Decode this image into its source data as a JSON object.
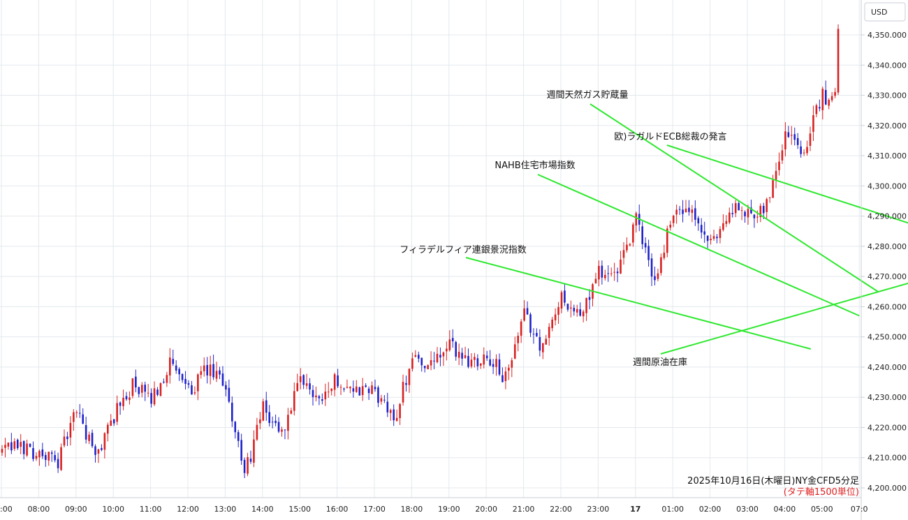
{
  "currency_label": "USD",
  "caption": {
    "line1": "2025年10月16日(木曜日)NY金CFD5分足",
    "line2": "(タテ軸1500単位)"
  },
  "colors": {
    "up": "#d82020",
    "down": "#1e22c8",
    "annotation": "#2ee82e",
    "grid": "#e3e8ee"
  },
  "chart_data": {
    "type": "candlestick",
    "ylim": [
      4197,
      4358
    ],
    "y_ticks": [
      {
        "value": 4200,
        "label": "4,200.000"
      },
      {
        "value": 4210,
        "label": "4,210.000"
      },
      {
        "value": 4220,
        "label": "4,220.000"
      },
      {
        "value": 4230,
        "label": "4,230.000"
      },
      {
        "value": 4240,
        "label": "4,240.000"
      },
      {
        "value": 4250,
        "label": "4,250.000"
      },
      {
        "value": 4260,
        "label": "4,260.000"
      },
      {
        "value": 4270,
        "label": "4,270.000"
      },
      {
        "value": 4280,
        "label": "4,280.000"
      },
      {
        "value": 4290,
        "label": "4,290.000"
      },
      {
        "value": 4300,
        "label": "4,300.000"
      },
      {
        "value": 4310,
        "label": "4,310.000"
      },
      {
        "value": 4320,
        "label": "4,320.000"
      },
      {
        "value": 4330,
        "label": "4,330.000"
      },
      {
        "value": 4340,
        "label": "4,340.000"
      },
      {
        "value": 4350,
        "label": "4,350.000"
      }
    ],
    "x_ticks": [
      {
        "label": ":00",
        "bold": false
      },
      {
        "label": "08:00",
        "bold": false
      },
      {
        "label": "09:00",
        "bold": false
      },
      {
        "label": "10:00",
        "bold": false
      },
      {
        "label": "11:00",
        "bold": false
      },
      {
        "label": "12:00",
        "bold": false
      },
      {
        "label": "13:00",
        "bold": false
      },
      {
        "label": "14:00",
        "bold": false
      },
      {
        "label": "15:00",
        "bold": false
      },
      {
        "label": "16:00",
        "bold": false
      },
      {
        "label": "17:00",
        "bold": false
      },
      {
        "label": "18:00",
        "bold": false
      },
      {
        "label": "19:00",
        "bold": false
      },
      {
        "label": "20:00",
        "bold": false
      },
      {
        "label": "21:00",
        "bold": false
      },
      {
        "label": "22:00",
        "bold": false
      },
      {
        "label": "23:00",
        "bold": false
      },
      {
        "label": "17",
        "bold": true
      },
      {
        "label": "01:00",
        "bold": false
      },
      {
        "label": "02:00",
        "bold": false
      },
      {
        "label": "03:00",
        "bold": false
      },
      {
        "label": "04:00",
        "bold": false
      },
      {
        "label": "05:00",
        "bold": false
      },
      {
        "label": "07:0",
        "bold": false
      }
    ],
    "hourly_path": [
      4212,
      4214,
      4211,
      4209,
      4226,
      4210,
      4224,
      4234,
      4229,
      4241,
      4232,
      4239,
      4234,
      4204,
      4226,
      4218,
      4235,
      4230,
      4236,
      4232,
      4232,
      4222,
      4244,
      4240,
      4247,
      4242,
      4244,
      4236,
      4257,
      4246,
      4264,
      4256,
      4272,
      4270,
      4289,
      4268,
      4292,
      4290,
      4280,
      4292,
      4291,
      4294,
      4318,
      4312,
      4330,
      4328
    ],
    "close": 4352,
    "annotations": [
      {
        "label": "フィラデルフィア連銀景況指数",
        "time_h": 21.7,
        "price": 4246
      },
      {
        "label": "NAHB住宅市場指数",
        "time_h": 23.0,
        "price": 4257
      },
      {
        "label": "週間天然ガス貯蔵量",
        "time_h": 23.5,
        "price": 4265
      },
      {
        "label": "欧)ラガルドECB総裁の発言",
        "time_h": 25.25,
        "price": 4284
      },
      {
        "label": "週間原油在庫",
        "time_h": 24.95,
        "price": 4270
      }
    ]
  }
}
